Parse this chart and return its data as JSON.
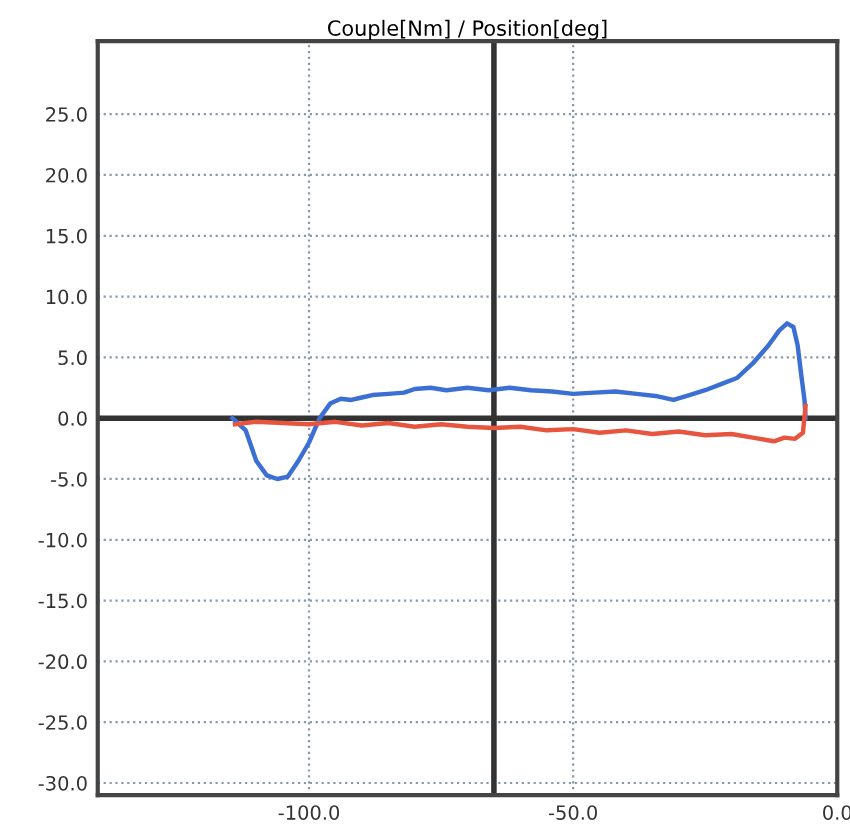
{
  "chart_data": {
    "type": "line",
    "title": "Couple[Nm] / Position[deg]",
    "xlim": [
      -140,
      0
    ],
    "ylim": [
      -31,
      31
    ],
    "xticks": [
      {
        "value": -100,
        "label": "-100.0"
      },
      {
        "value": -50,
        "label": "-50.0"
      },
      {
        "value": 0,
        "label": "0.0"
      }
    ],
    "yticks": [
      {
        "value": -30,
        "label": "-30.0"
      },
      {
        "value": -25,
        "label": "-25.0"
      },
      {
        "value": -20,
        "label": "-20.0"
      },
      {
        "value": -15,
        "label": "-15.0"
      },
      {
        "value": -10,
        "label": "-10.0"
      },
      {
        "value": -5,
        "label": "-5.0"
      },
      {
        "value": 0,
        "label": "0.0"
      },
      {
        "value": 5,
        "label": "5.0"
      },
      {
        "value": 10,
        "label": "10.0"
      },
      {
        "value": 15,
        "label": "15.0"
      },
      {
        "value": 20,
        "label": "20.0"
      },
      {
        "value": 25,
        "label": "25.0"
      }
    ],
    "grid": true,
    "line_style": "solid",
    "marker": "none",
    "ref_lines": [
      {
        "axis": "y",
        "value": 0,
        "label": null,
        "color": "#333333"
      },
      {
        "axis": "x",
        "value": -65,
        "label": null,
        "color": "#333333"
      }
    ],
    "series": [
      {
        "color": "#3b6fd4",
        "x": [
          -114.5,
          -112,
          -110,
          -108,
          -106,
          -104,
          -102,
          -100,
          -98,
          -96,
          -94,
          -92,
          -90,
          -88,
          -85,
          -82,
          -80,
          -77,
          -74,
          -70,
          -66,
          -62,
          -58,
          -54,
          -50,
          -46,
          -42,
          -38,
          -34,
          -31,
          -28,
          -25,
          -22,
          -19,
          -16,
          -13,
          -11,
          -9.5,
          -8.3,
          -7.5,
          -6.8,
          -6.2,
          -6
        ],
        "values": [
          0,
          -1,
          -3.5,
          -4.7,
          -5,
          -4.8,
          -3.5,
          -2,
          0,
          1.2,
          1.6,
          1.5,
          1.7,
          1.9,
          2.0,
          2.1,
          2.4,
          2.5,
          2.3,
          2.5,
          2.3,
          2.5,
          2.3,
          2.2,
          2.0,
          2.1,
          2.2,
          2.0,
          1.8,
          1.5,
          1.9,
          2.3,
          2.8,
          3.3,
          4.5,
          6.0,
          7.2,
          7.8,
          7.5,
          6,
          3.5,
          1.5,
          0
        ]
      },
      {
        "color": "#e8553f",
        "x": [
          -114,
          -110,
          -105,
          -100,
          -95,
          -90,
          -85,
          -80,
          -75,
          -70,
          -65,
          -60,
          -55,
          -50,
          -45,
          -40,
          -35,
          -30,
          -25,
          -20,
          -16,
          -12,
          -10,
          -8,
          -6.5,
          -6
        ],
        "values": [
          -0.5,
          -0.3,
          -0.4,
          -0.5,
          -0.3,
          -0.6,
          -0.4,
          -0.7,
          -0.5,
          -0.7,
          -0.8,
          -0.7,
          -1.0,
          -0.9,
          -1.2,
          -1.0,
          -1.3,
          -1.1,
          -1.4,
          -1.3,
          -1.6,
          -1.9,
          -1.6,
          -1.7,
          -1.2,
          1.0
        ]
      }
    ]
  }
}
